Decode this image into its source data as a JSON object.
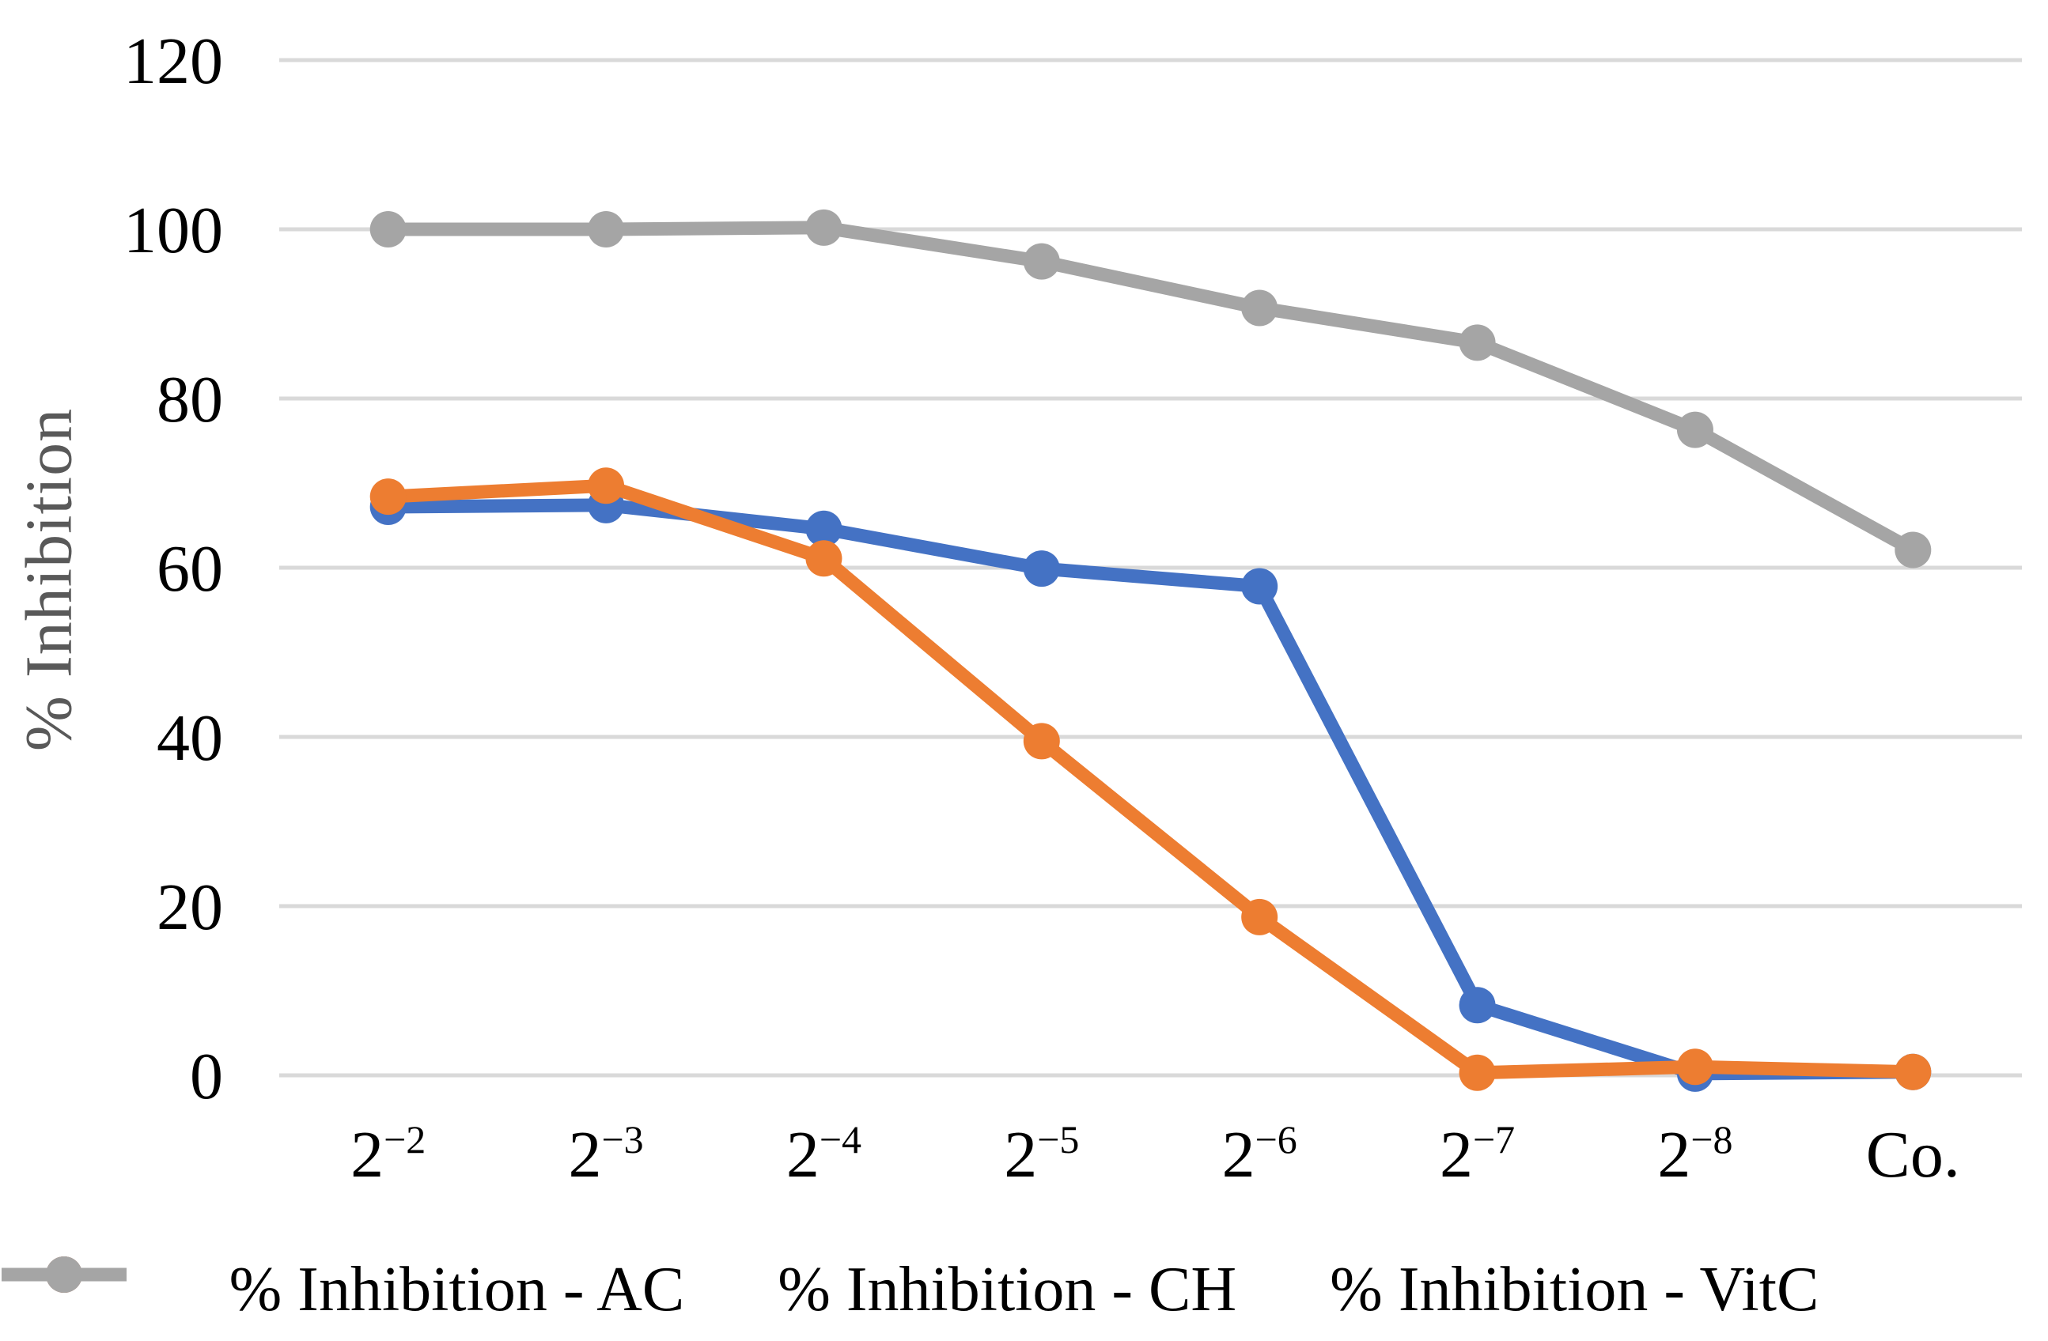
{
  "chart_data": {
    "type": "line",
    "title": "",
    "xlabel": "",
    "ylabel": "% Inhibition",
    "ylim": [
      0,
      120
    ],
    "yticks": [
      0,
      20,
      40,
      60,
      80,
      100,
      120
    ],
    "grid": "horizontal",
    "legend_position": "bottom",
    "marker": "circle",
    "colors": {
      "background": "#FFFFFF",
      "gridline": "#D9D9D9",
      "axis_tick_text": "#000000",
      "axis_title_text": "#595959",
      "series_ac": "#4472C4",
      "series_ch": "#ED7D31",
      "series_vitc": "#A5A5A5"
    },
    "categories": [
      {
        "base": "2",
        "sup": "−2"
      },
      {
        "base": "2",
        "sup": "−3"
      },
      {
        "base": "2",
        "sup": "−4"
      },
      {
        "base": "2",
        "sup": "−5"
      },
      {
        "base": "2",
        "sup": "−6"
      },
      {
        "base": "2",
        "sup": "−7"
      },
      {
        "base": "2",
        "sup": "−8"
      },
      {
        "base": "Co.",
        "sup": ""
      }
    ],
    "categories_text": [
      "2^−2",
      "2^−3",
      "2^−4",
      "2^−5",
      "2^−6",
      "2^−7",
      "2^−8",
      "Co."
    ],
    "series": [
      {
        "name": "% Inhibition - AC",
        "color": "#4472C4",
        "values": [
          67.2,
          67.4,
          64.6,
          59.9,
          57.8,
          8.3,
          0.2,
          0.4
        ]
      },
      {
        "name": "% Inhibition - CH",
        "color": "#ED7D31",
        "values": [
          68.4,
          69.7,
          61.1,
          39.5,
          18.7,
          0.3,
          1.0,
          0.4
        ]
      },
      {
        "name": "% Inhibition - VitC",
        "color": "#A5A5A5",
        "values": [
          100,
          100,
          100.2,
          96.2,
          90.7,
          86.6,
          76.3,
          62.1
        ]
      }
    ]
  }
}
